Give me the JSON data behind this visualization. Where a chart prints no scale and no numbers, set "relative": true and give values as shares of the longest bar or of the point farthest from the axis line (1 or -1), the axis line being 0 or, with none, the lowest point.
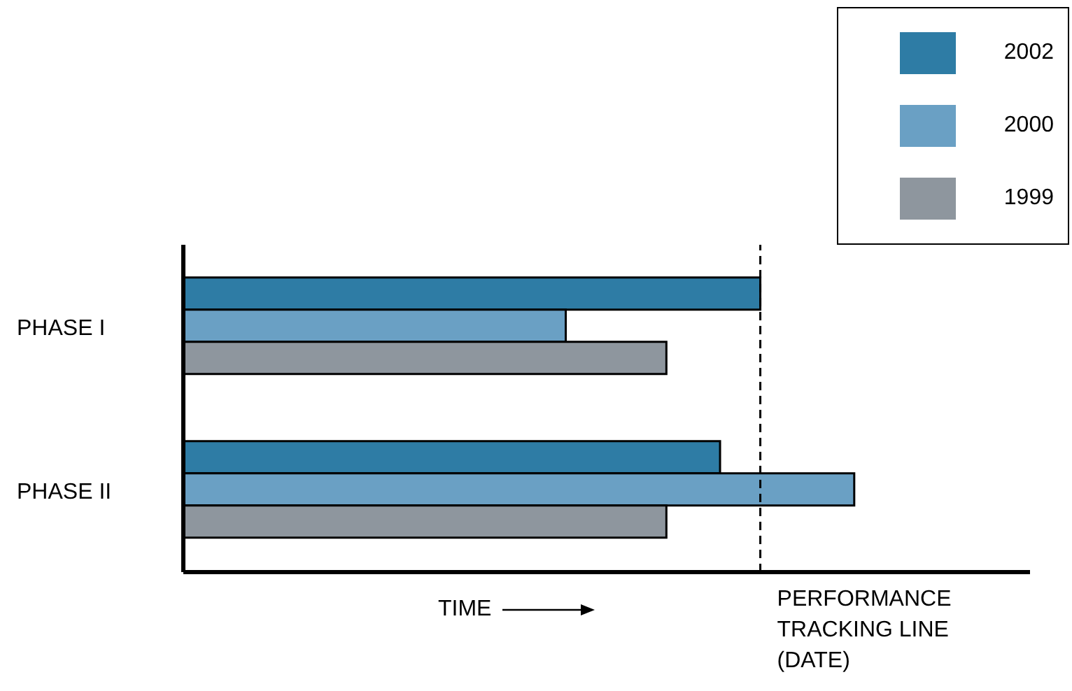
{
  "chart_data": {
    "type": "bar",
    "orientation": "horizontal",
    "relative": true,
    "xlabel": "TIME",
    "categories": [
      "PHASE I",
      "PHASE II"
    ],
    "series": [
      {
        "name": "2002",
        "color": "#2e7ca5",
        "values": [
          0.86,
          0.8
        ]
      },
      {
        "name": "2000",
        "color": "#6aa0c4",
        "values": [
          0.57,
          1
        ]
      },
      {
        "name": "1999",
        "color": "#8e969e",
        "values": [
          0.72,
          0.72
        ]
      }
    ],
    "ref_lines": [
      {
        "axis": "x",
        "value": 0.86,
        "label": "PERFORMANCE TRACKING LINE (DATE)",
        "line_style": "dashed",
        "color": "#000000"
      }
    ],
    "legend": "top right",
    "grid": false
  }
}
